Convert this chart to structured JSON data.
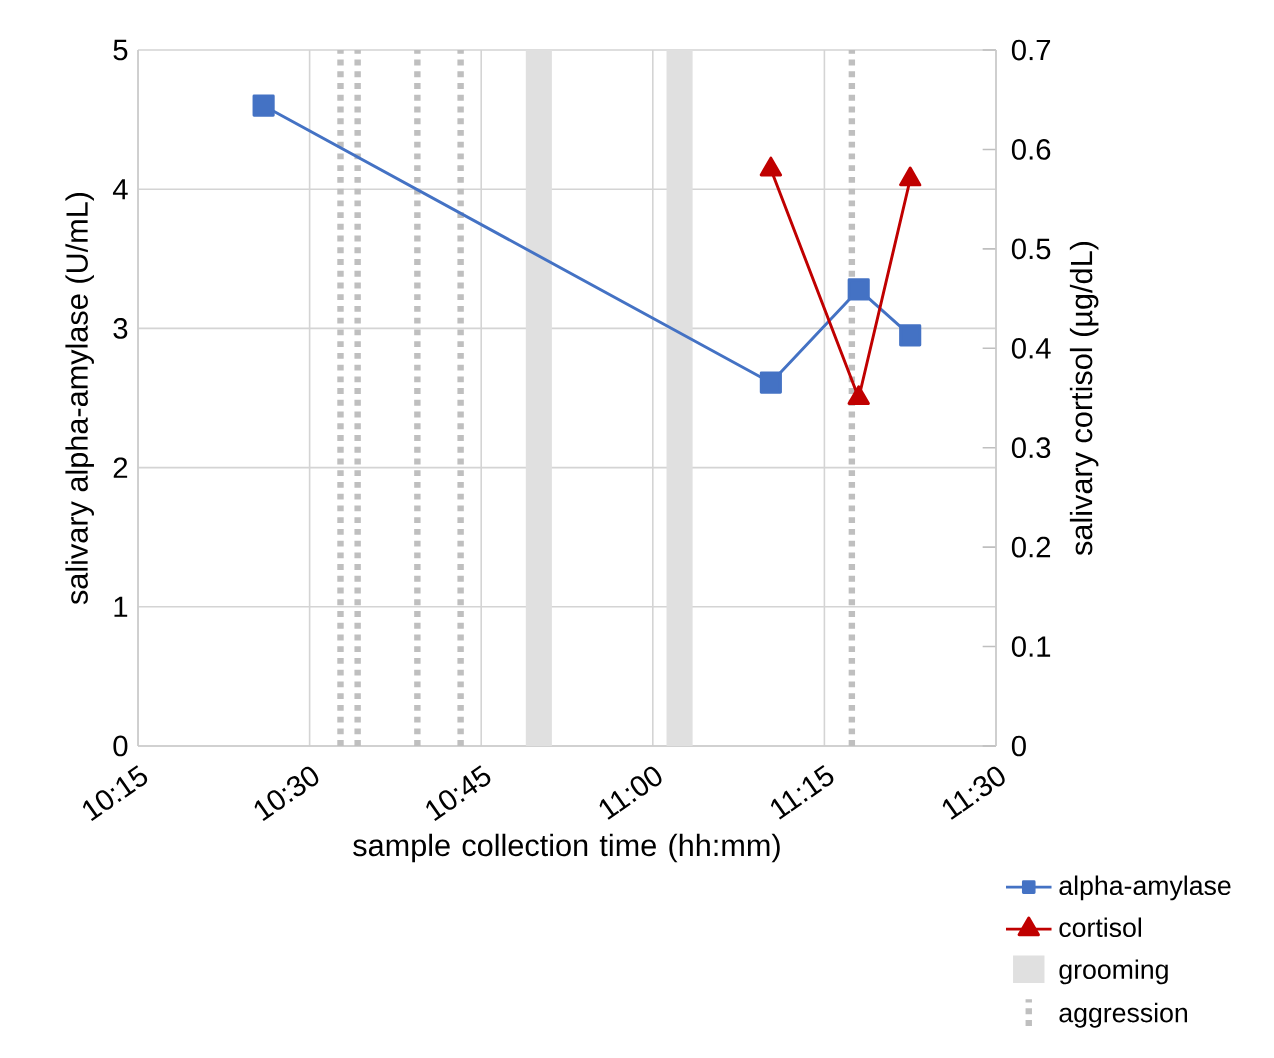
{
  "chart_data": {
    "type": "line",
    "xlabel": "sample collection time (hh:mm)",
    "ylabel": "salivary alpha-amylase (U/mL)",
    "y2label": "salivary cortisol (µg/dL)",
    "xlim": [
      10.25,
      11.5
    ],
    "xticks": [
      {
        "value": 10.25,
        "label": "10:15"
      },
      {
        "value": 10.5,
        "label": "10:30"
      },
      {
        "value": 10.75,
        "label": "10:45"
      },
      {
        "value": 11,
        "label": "11:00"
      },
      {
        "value": 11.25,
        "label": "11:15"
      },
      {
        "value": 11.5,
        "label": "11:30"
      }
    ],
    "ylim": [
      0,
      5
    ],
    "yticks": [
      0,
      1,
      2,
      3,
      4,
      5
    ],
    "y2lim": [
      0,
      0.7
    ],
    "y2ticks": [
      0,
      0.1,
      0.2,
      0.3,
      0.4,
      0.5,
      0.6,
      0.7
    ],
    "grid": true,
    "legend": "bottom right",
    "series": [
      {
        "name": "alpha-amylase",
        "color": "#4472c4",
        "marker": "square",
        "x": [
          10.433,
          11.172,
          11.3,
          11.375
        ],
        "values": [
          4.6,
          2.61,
          3.28,
          2.95
        ]
      },
      {
        "name": "cortisol",
        "color": "#c00000",
        "marker": "triangle",
        "axis": "y2",
        "x": [
          11.172,
          11.3,
          11.375
        ],
        "values": [
          0.58,
          0.35,
          0.57
        ]
      }
    ],
    "bands": [
      {
        "axis": "x",
        "from": 10.815,
        "to": 10.853,
        "label": "grooming",
        "color": "#e0e0e0"
      },
      {
        "axis": "x",
        "from": 11.02,
        "to": 11.058,
        "color": "#e0e0e0"
      }
    ],
    "ref_lines": [
      {
        "axis": "x",
        "value": 10.545,
        "label": "aggression",
        "color": "#bfbfbf",
        "line_style": "dotted"
      },
      {
        "axis": "x",
        "value": 10.57,
        "color": "#bfbfbf",
        "line_style": "dotted"
      },
      {
        "axis": "x",
        "value": 10.657,
        "color": "#bfbfbf",
        "line_style": "dotted"
      },
      {
        "axis": "x",
        "value": 10.72,
        "color": "#bfbfbf",
        "line_style": "dotted"
      },
      {
        "axis": "x",
        "value": 11.29,
        "color": "#bfbfbf",
        "line_style": "dotted"
      }
    ]
  }
}
